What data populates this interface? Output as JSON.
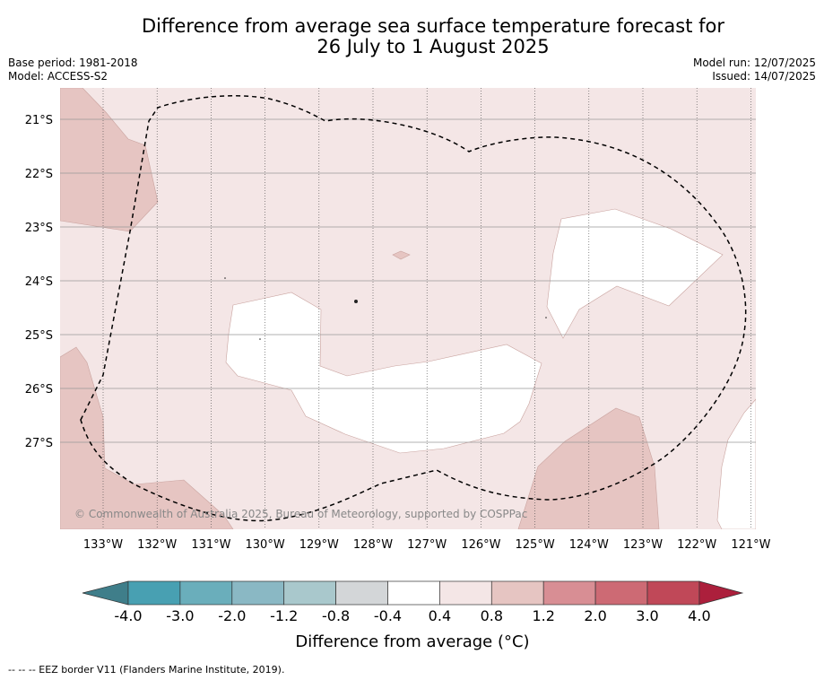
{
  "title_line1": "Difference from average sea surface temperature forecast for",
  "title_line2": "26 July to 1 August 2025",
  "meta_left": [
    "Base period: 1981-2018",
    "Model: ACCESS-S2"
  ],
  "meta_right": [
    "Model run: 12/07/2025",
    "Issued: 14/07/2025"
  ],
  "copyright": "© Commonwealth of Australia 2025, Bureau of Meteorology, supported by COSPPac",
  "lat_labels": [
    "21°S",
    "22°S",
    "23°S",
    "24°S",
    "25°S",
    "26°S",
    "27°S"
  ],
  "lon_labels": [
    "133°W",
    "132°W",
    "131°W",
    "130°W",
    "129°W",
    "128°W",
    "127°W",
    "126°W",
    "125°W",
    "124°W",
    "123°W",
    "122°W",
    "121°W"
  ],
  "colorbar": {
    "tick_labels": [
      "-4.0",
      "-3.0",
      "-2.0",
      "-1.2",
      "-0.8",
      "-0.4",
      "0.4",
      "0.8",
      "1.2",
      "2.0",
      "3.0",
      "4.0"
    ],
    "colors": [
      "#3f7e8a",
      "#48a0b2",
      "#6aaebb",
      "#8ab8c4",
      "#a9c8cc",
      "#d3d6d8",
      "#ffffff",
      "#f4e6e6",
      "#e6c5c2",
      "#d88e94",
      "#cd6a74",
      "#c04858",
      "#ac1f3c"
    ],
    "title": "Difference from average (°C)"
  },
  "map_colors": {
    "background": "#f4e6e6",
    "light_patch": "#ffffff",
    "warm_patch": "#e6c5c2",
    "eez_line": "#000000"
  },
  "footnote": "-- -- -- EEZ border V11 (Flanders Marine Institute, 2019)."
}
